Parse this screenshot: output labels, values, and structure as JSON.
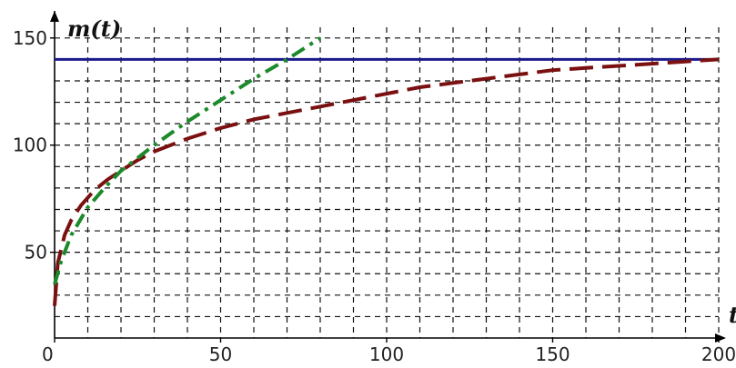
{
  "chart_data": {
    "type": "line",
    "title": "",
    "ylabel": "m(t)",
    "xlabel": "t",
    "xlim": [
      0,
      200
    ],
    "ylim": [
      10,
      155
    ],
    "xticks": [
      0,
      50,
      100,
      150,
      200
    ],
    "yticks": [
      50,
      100,
      150
    ],
    "grid": true,
    "grid_step_x": 10,
    "grid_step_y": 10,
    "series": [
      {
        "style": "solid",
        "color": "#1a1a8c",
        "x": [
          0,
          200
        ],
        "y": [
          140,
          140
        ]
      },
      {
        "style": "dashed",
        "color": "#7a1010",
        "x": [
          0,
          1,
          3,
          5,
          8,
          12,
          16,
          20,
          25,
          30,
          40,
          50,
          60,
          70,
          80,
          90,
          100,
          110,
          120,
          130,
          140,
          150,
          160,
          170,
          180,
          190,
          200
        ],
        "y": [
          25,
          45,
          58,
          65,
          72,
          79,
          84,
          88,
          93,
          97,
          103,
          108,
          112,
          115,
          118,
          121,
          124,
          127,
          129,
          131,
          133,
          135,
          136,
          137,
          138,
          139,
          140
        ]
      },
      {
        "style": "dash-dot",
        "color": "#1a8a2a",
        "x": [
          0,
          2,
          5,
          10,
          15,
          20,
          30,
          40,
          50,
          60,
          70,
          80
        ],
        "y": [
          35,
          46,
          58,
          71,
          80,
          88,
          100,
          111,
          121,
          131,
          140,
          150
        ]
      }
    ]
  }
}
